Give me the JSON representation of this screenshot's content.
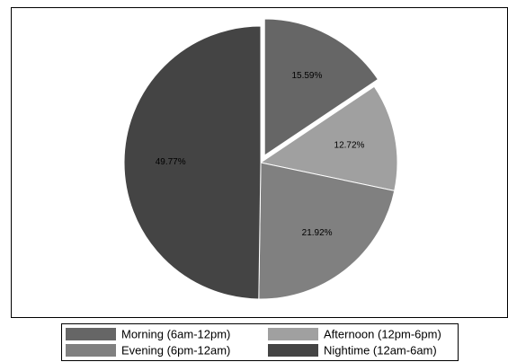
{
  "chart_data": {
    "type": "pie",
    "categories": [
      "Morning (6am-12pm)",
      "Afternoon (12pm-6pm)",
      "Evening (6pm-12am)",
      "Nightime (12am-6am)"
    ],
    "values": [
      15.59,
      12.72,
      21.92,
      49.77
    ],
    "value_labels": [
      "15.59%",
      "12.72%",
      "21.92%",
      "49.77%"
    ],
    "colors": [
      "#666666",
      "#a0a0a0",
      "#808080",
      "#444444"
    ],
    "explode": [
      true,
      false,
      false,
      false
    ],
    "legend": "bottom"
  }
}
